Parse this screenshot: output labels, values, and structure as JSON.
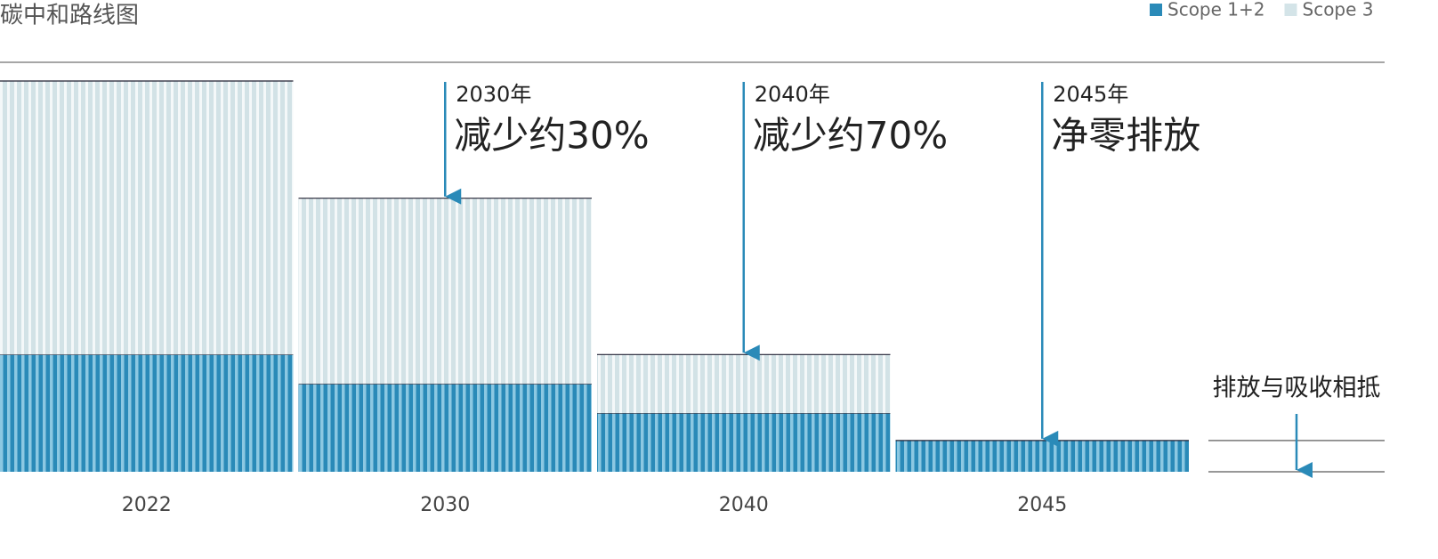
{
  "chart_data": {
    "type": "stacked-bar",
    "title": "碳中和路线图",
    "categories": [
      "2022",
      "2030",
      "2040",
      "2045"
    ],
    "series": [
      {
        "name": "Scope 1+2",
        "color": "#2a8ab8",
        "values": [
          30,
          22.5,
          15,
          8
        ]
      },
      {
        "name": "Scope 3",
        "color": "#d4e4e8",
        "values": [
          70,
          47.5,
          15,
          0
        ]
      }
    ],
    "ylim": [
      0,
      100
    ],
    "annotations": [
      {
        "label": "2030年",
        "text": "减少约30%"
      },
      {
        "label": "2040年",
        "text": "减少约70%"
      },
      {
        "label": "2045年",
        "text": "净零排放"
      }
    ],
    "offset_note": "排放与吸收相抵"
  }
}
